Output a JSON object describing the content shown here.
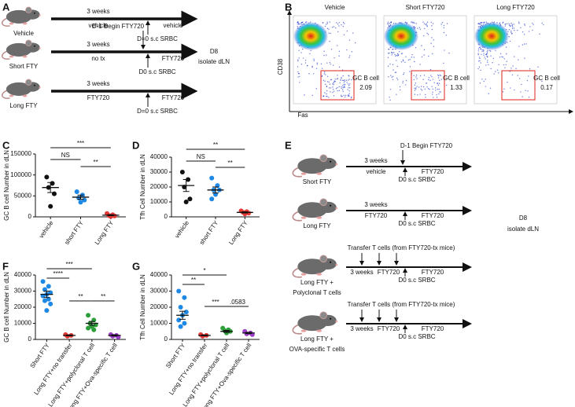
{
  "panel_labels": [
    "A",
    "B",
    "C",
    "D",
    "E",
    "F",
    "G"
  ],
  "schematic_a": {
    "rows": [
      {
        "group": "Vehicle",
        "color": "#111111",
        "period": "3 weeks",
        "pre": "vehicle",
        "post": "vehicle",
        "injection": "D=0 s.c SRBC"
      },
      {
        "group": "Short FTY",
        "color": "#1f7fc4",
        "note": "D-1 Begin FTY720",
        "period": "3 weeks",
        "pre": "no tx",
        "post": "FTY720",
        "injection": "D0 s.c SRBC"
      },
      {
        "group": "Long FTY",
        "color": "#e0201b",
        "period": "3 weeks",
        "pre": "FTY720",
        "post": "FTY720",
        "injection": "D=0 s.c SRBC"
      }
    ],
    "endpoint": [
      "D8",
      "isolate dLN"
    ]
  },
  "flow_b": {
    "y_label": "CD38",
    "x_label": "Fas",
    "gate_label": "GC B cell",
    "plots": [
      {
        "title": "Vehicle",
        "color": "#111111",
        "value": 2.09
      },
      {
        "title": "Short FTY720",
        "color": "#3a9ad9",
        "value": 1.33
      },
      {
        "title": "Long FTY720",
        "color": "#e0201b",
        "value": 0.17
      }
    ]
  },
  "schematic_e": {
    "rows": [
      {
        "group": [
          "Short FTY"
        ],
        "color": "#1f7fc4",
        "label_color": "#1f7fc4",
        "note": "D-1 Begin FTY720",
        "period": "3 weeks",
        "pre": "vehicle",
        "post": "FTY720",
        "injection": "D0 s.c SRBC"
      },
      {
        "group": [
          "Long FTY"
        ],
        "color": "#e0201b",
        "label_color": "#e0201b",
        "period": "3 weeks",
        "pre": "FTY720",
        "post": "FTY720",
        "injection": "D0 s.c SRBC"
      },
      {
        "group": [
          "Long FTY +",
          "Polyclonal T cells"
        ],
        "color": "#4f8a2a",
        "label_color": "#111111",
        "note": "Transfer T cells (from FTY720-tx mice)",
        "period": "3 weeks",
        "pre": "FTY720",
        "post": "FTY720",
        "injection": "D0 s.c SRBC"
      },
      {
        "group": [
          "Long FTY +",
          "OVA-specific T cells"
        ],
        "color": "#7b2fa8",
        "label_color": "#111111",
        "note": "Transfer T cells (from FTY720-tx mice)",
        "period": "3 weeks",
        "pre": "FTY720",
        "post": "FTY720",
        "injection": "D0 s.c SRBC"
      }
    ],
    "endpoint": [
      "D8",
      "isolate dLN"
    ]
  },
  "chart_data": [
    {
      "type": "dot",
      "ylabel": "GC B cell Number in dLN",
      "categories": [
        "vehicle",
        "short FTY",
        "Long FTY"
      ],
      "colors": [
        "#111111",
        "#1e88e5",
        "#e53935"
      ],
      "points": [
        [
          95000,
          80000,
          70000,
          55000,
          25000
        ],
        [
          60000,
          52000,
          45000,
          40000,
          35000
        ],
        [
          8000,
          5000,
          3000,
          2000,
          1000
        ]
      ],
      "means": [
        70000,
        47000,
        4000
      ],
      "errors": [
        12000,
        5000,
        1300
      ],
      "ylim": [
        0,
        150000
      ],
      "yticks": [
        0,
        50000,
        100000,
        150000
      ],
      "annotations": [
        "***",
        "NS",
        "**"
      ]
    },
    {
      "type": "dot",
      "ylabel": "Tfh Cell Number in dLN",
      "categories": [
        "vehicle",
        "short FTY",
        "Long FTY"
      ],
      "colors": [
        "#111111",
        "#1e88e5",
        "#e53935"
      ],
      "points": [
        [
          30000,
          25000,
          20000,
          12000,
          10000
        ],
        [
          26000,
          21000,
          18000,
          18000,
          15000,
          12000
        ],
        [
          4000,
          3500,
          3000,
          2500,
          2000
        ]
      ],
      "means": [
        21000,
        18000,
        3000
      ],
      "errors": [
        4000,
        2000,
        400
      ],
      "ylim": [
        0,
        40000
      ],
      "yticks": [
        0,
        10000,
        20000,
        30000,
        40000
      ],
      "annotations": [
        "**",
        "NS",
        "**"
      ]
    },
    {
      "type": "dot",
      "ylabel": "GC B cell Number in dLN",
      "categories": [
        "Short FTY",
        "Long FTY+no transfer",
        "Long FTY+polyclonal T cell",
        "Long FTY+Ova-specific T cell"
      ],
      "colors": [
        "#1e88e5",
        "#e53935",
        "#2e9e3a",
        "#9b3fc9"
      ],
      "points": [
        [
          36000,
          33000,
          31000,
          29000,
          28000,
          27000,
          25000,
          24000,
          22000,
          18000
        ],
        [
          3000,
          2500,
          2000
        ],
        [
          15000,
          12000,
          10000,
          9000,
          8000,
          7000,
          6000
        ],
        [
          3000,
          2500,
          2000,
          1500
        ]
      ],
      "means": [
        28000,
        2500,
        10000,
        2500
      ],
      "errors": [
        2000,
        300,
        1200,
        400
      ],
      "ylim": [
        0,
        40000
      ],
      "yticks": [
        0,
        10000,
        20000,
        30000,
        40000
      ],
      "annotations": [
        "***",
        "****",
        "**",
        "**"
      ]
    },
    {
      "type": "dot",
      "ylabel": "Tfh Cell Number in dLN",
      "categories": [
        "Short FTY",
        "Long FTY+no transfer",
        "Long FTY+polyclonal T cell",
        "Long FTY+Ova-specific T cell"
      ],
      "colors": [
        "#1e88e5",
        "#e53935",
        "#2e9e3a",
        "#9b3fc9"
      ],
      "points": [
        [
          30000,
          26000,
          20000,
          17000,
          15000,
          12000,
          10000,
          8000
        ],
        [
          3000,
          2500,
          2000
        ],
        [
          7000,
          6000,
          5500,
          5000,
          4000
        ],
        [
          5000,
          4000,
          3500,
          3000
        ]
      ],
      "means": [
        15000,
        2500,
        5000,
        4000
      ],
      "errors": [
        2500,
        300,
        600,
        400
      ],
      "ylim": [
        0,
        40000
      ],
      "yticks": [
        0,
        10000,
        20000,
        30000,
        40000
      ],
      "annotations": [
        "*",
        "**",
        "***",
        ".0583"
      ]
    }
  ]
}
